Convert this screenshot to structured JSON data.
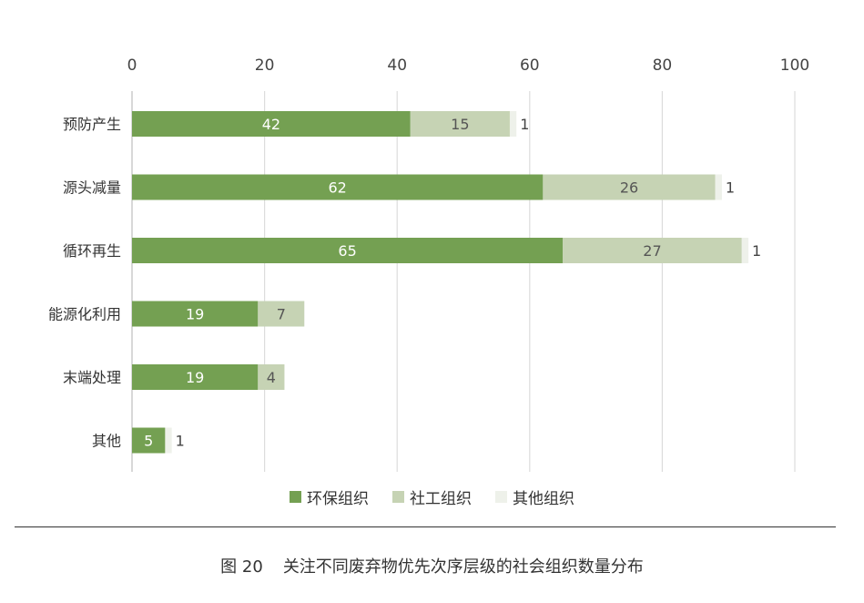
{
  "chart_data": {
    "type": "bar",
    "orientation": "horizontal",
    "stacked": true,
    "categories": [
      "预防产生",
      "源头减量",
      "循环再生",
      "能源化利用",
      "末端处理",
      "其他"
    ],
    "series": [
      {
        "name": "环保组织",
        "color": "#74a052",
        "label_color": "#ffffff",
        "values": [
          42,
          62,
          65,
          19,
          19,
          5
        ]
      },
      {
        "name": "社工组织",
        "color": "#c6d3b4",
        "label_color": "#555555",
        "values": [
          15,
          26,
          27,
          7,
          4,
          0
        ]
      },
      {
        "name": "其他组织",
        "color": "#eef1ea",
        "label_color": "#444444",
        "values": [
          1,
          1,
          1,
          0,
          0,
          1
        ]
      }
    ],
    "xlim": [
      0,
      100
    ],
    "xticks": [
      0,
      20,
      40,
      60,
      80,
      100
    ],
    "xaxis_position": "top",
    "grid": true,
    "legend_position": "bottom",
    "title": ""
  },
  "caption": {
    "label": "图 20",
    "text": "关注不同废弃物优先次序层级的社会组织数量分布"
  }
}
